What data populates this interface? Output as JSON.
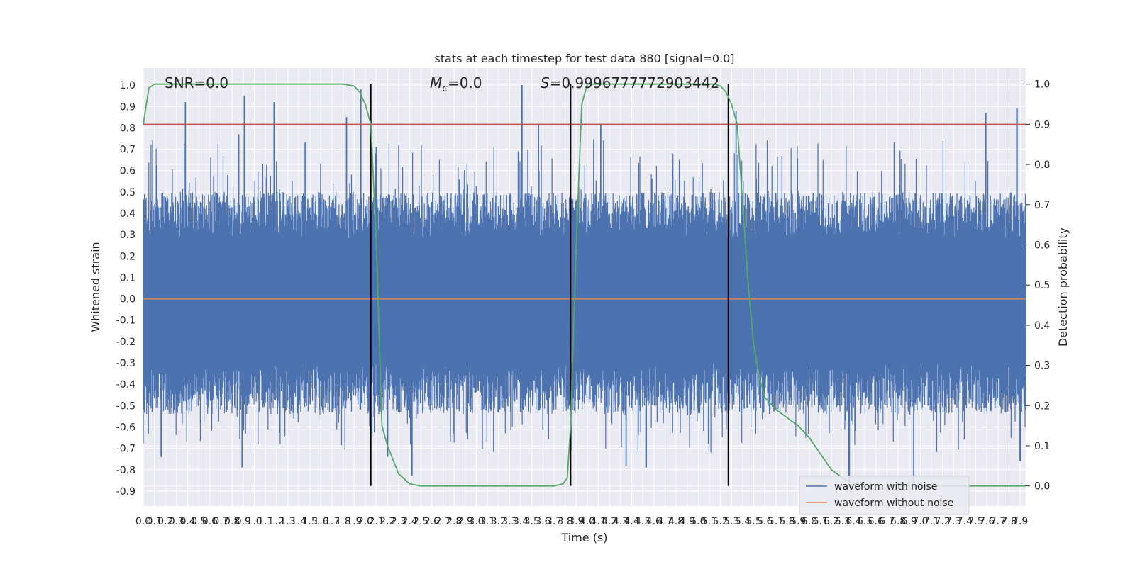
{
  "chart_data": {
    "type": "line",
    "title": "stats at each timestep for test data 880 [signal=0.0]",
    "xlabel": "Time (s)",
    "ylabel": "Whitened strain",
    "y2label": "Detection probability",
    "xlim": [
      0.0,
      7.95
    ],
    "ylim": [
      -0.97,
      1.08
    ],
    "y2lim": [
      -0.05,
      1.04
    ],
    "x_ticks": [
      "0.0",
      "0.1",
      "0.2",
      "0.3",
      "0.4",
      "0.5",
      "0.6",
      "0.7",
      "0.8",
      "0.9",
      "1.0",
      "1.1",
      "1.2",
      "1.3",
      "1.4",
      "1.5",
      "1.6",
      "1.7",
      "1.8",
      "1.9",
      "2.0",
      "2.1",
      "2.2",
      "2.3",
      "2.4",
      "2.5",
      "2.6",
      "2.7",
      "2.8",
      "2.9",
      "3.0",
      "3.1",
      "3.2",
      "3.3",
      "3.4",
      "3.5",
      "3.6",
      "3.7",
      "3.8",
      "3.9",
      "4.0",
      "4.1",
      "4.2",
      "4.3",
      "4.4",
      "4.5",
      "4.6",
      "4.7",
      "4.8",
      "4.9",
      "5.0",
      "5.1",
      "5.2",
      "5.3",
      "5.4",
      "5.5",
      "5.6",
      "5.7",
      "5.8",
      "5.9",
      "6.0",
      "6.1",
      "6.2",
      "6.3",
      "6.4",
      "6.5",
      "6.6",
      "6.7",
      "6.8",
      "6.9",
      "7.0",
      "7.1",
      "7.2",
      "7.3",
      "7.4",
      "7.5",
      "7.6",
      "7.7",
      "7.8",
      "7.9"
    ],
    "y_ticks": [
      "1.0",
      "0.9",
      "0.8",
      "0.7",
      "0.6",
      "0.5",
      "0.4",
      "0.3",
      "0.2",
      "0.1",
      "0.0",
      "-0.1",
      "-0.2",
      "-0.3",
      "-0.4",
      "-0.5",
      "-0.6",
      "-0.7",
      "-0.8",
      "-0.9"
    ],
    "y2_ticks": [
      "1.0",
      "0.9",
      "0.8",
      "0.7",
      "0.6",
      "0.5",
      "0.4",
      "0.3",
      "0.2",
      "0.1",
      "0.0"
    ],
    "annotations": {
      "snr": "SNR=0.0",
      "mc_symbol": "M",
      "mc_sub": "c",
      "mc_value": "=0.0",
      "s_symbol": "S",
      "s_value": "=0.9996777772903442"
    },
    "threshold": 0.9,
    "vertical_markers": [
      2.05,
      3.85,
      5.27
    ],
    "series": [
      {
        "name": "waveform with noise",
        "color": "#4c72b0",
        "noise_envelope": {
          "typical_upper": 0.28,
          "typical_lower": -0.3,
          "max": 1.0,
          "min": -0.88
        },
        "peaks": [
          {
            "x": 0.38,
            "y": 0.92
          },
          {
            "x": 0.86,
            "y": 0.77
          },
          {
            "x": 0.91,
            "y": 0.95
          },
          {
            "x": 1.18,
            "y": 0.92
          },
          {
            "x": 1.83,
            "y": 0.85
          },
          {
            "x": 1.96,
            "y": 0.98
          },
          {
            "x": 3.41,
            "y": 1.0
          },
          {
            "x": 3.56,
            "y": 0.82
          },
          {
            "x": 4.12,
            "y": 0.82
          },
          {
            "x": 5.34,
            "y": 0.88
          },
          {
            "x": 7.59,
            "y": 0.87
          },
          {
            "x": 7.87,
            "y": 0.89
          },
          {
            "x": 2.1,
            "y": 0.71
          },
          {
            "x": 3.38,
            "y": 0.69
          }
        ],
        "troughs": [
          {
            "x": 0.16,
            "y": -0.74
          },
          {
            "x": 0.89,
            "y": -0.79
          },
          {
            "x": 2.2,
            "y": -0.74
          },
          {
            "x": 2.42,
            "y": -0.83
          },
          {
            "x": 4.35,
            "y": -0.78
          },
          {
            "x": 4.53,
            "y": -0.79
          },
          {
            "x": 6.36,
            "y": -0.86
          },
          {
            "x": 6.94,
            "y": -0.88
          },
          {
            "x": 7.9,
            "y": -0.76
          }
        ]
      },
      {
        "name": "waveform without noise",
        "color": "#dd8452",
        "x": [
          0.0,
          7.95
        ],
        "y": [
          0.0,
          0.0
        ]
      },
      {
        "name": "detection probability",
        "color": "#55a868",
        "x": [
          0.0,
          0.05,
          0.1,
          0.2,
          0.5,
          1.0,
          1.5,
          1.8,
          1.9,
          1.95,
          2.0,
          2.05,
          2.1,
          2.15,
          2.2,
          2.3,
          2.4,
          2.5,
          2.6,
          3.0,
          3.5,
          3.7,
          3.78,
          3.82,
          3.85,
          3.9,
          3.95,
          4.0,
          4.05,
          4.1,
          4.5,
          5.0,
          5.15,
          5.2,
          5.25,
          5.3,
          5.35,
          5.4,
          5.45,
          5.5,
          5.55,
          5.6,
          5.7,
          5.8,
          5.9,
          6.0,
          6.1,
          6.2,
          6.3,
          6.4,
          6.5,
          7.0,
          7.5,
          7.95
        ],
        "y": [
          0.9,
          0.99,
          1.0,
          1.0,
          1.0,
          1.0,
          1.0,
          1.0,
          0.995,
          0.98,
          0.95,
          0.9,
          0.6,
          0.15,
          0.1,
          0.03,
          0.005,
          0.0,
          0.0,
          0.0,
          0.0,
          0.0,
          0.005,
          0.02,
          0.15,
          0.6,
          0.95,
          1.0,
          1.0,
          1.0,
          1.0,
          1.0,
          1.0,
          0.995,
          0.98,
          0.95,
          0.9,
          0.7,
          0.5,
          0.35,
          0.27,
          0.22,
          0.19,
          0.17,
          0.15,
          0.12,
          0.08,
          0.04,
          0.02,
          0.005,
          0.002,
          0.0,
          0.0,
          0.0
        ]
      }
    ],
    "threshold_color": "#c44e52",
    "marker_color": "#000000",
    "legend": {
      "position": "lower-right",
      "entries": [
        "waveform with noise",
        "waveform without noise"
      ]
    },
    "grid": true,
    "background": "#eaeaf2"
  }
}
